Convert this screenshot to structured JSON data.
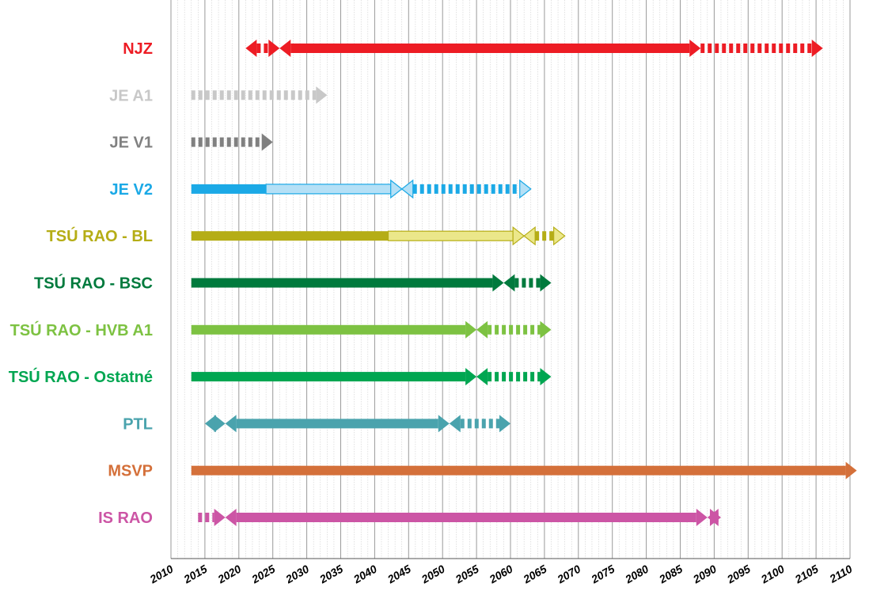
{
  "chart_data": {
    "type": "timeline",
    "x_ticks": [
      2010,
      2015,
      2020,
      2025,
      2030,
      2035,
      2040,
      2045,
      2050,
      2055,
      2060,
      2065,
      2070,
      2075,
      2080,
      2085,
      2090,
      2095,
      2100,
      2105,
      2110
    ],
    "xlim": [
      2010,
      2110
    ],
    "grid": true,
    "minor_grid_step_years": 1,
    "rows": [
      {
        "label": "NJZ",
        "color": "#ed1c24",
        "segments": [
          {
            "style": "dashed",
            "start": 2021,
            "end": 2026,
            "head_start": true,
            "head_end": true
          },
          {
            "style": "solid",
            "start": 2026,
            "end": 2088,
            "head_start": true,
            "head_end": true
          },
          {
            "style": "dashed",
            "start": 2088,
            "end": 2106,
            "head_start": false,
            "head_end": true
          }
        ]
      },
      {
        "label": "JE A1",
        "color": "#c8c8c8",
        "segments": [
          {
            "style": "dashed",
            "start": 2013,
            "end": 2033,
            "head_start": false,
            "head_end": true
          }
        ]
      },
      {
        "label": "JE V1",
        "color": "#808080",
        "segments": [
          {
            "style": "dashed",
            "start": 2013,
            "end": 2025,
            "head_start": false,
            "head_end": true
          }
        ]
      },
      {
        "label": "JE V2",
        "color": "#1ba9e6",
        "light_color": "#b5e0f6",
        "segments": [
          {
            "style": "solid",
            "start": 2013,
            "end": 2024,
            "head_start": false,
            "head_end": false
          },
          {
            "style": "hollow",
            "start": 2024,
            "end": 2044,
            "head_start": false,
            "head_end": true
          },
          {
            "style": "dashed",
            "start": 2044,
            "end": 2063,
            "head_start": true,
            "head_end": true
          }
        ]
      },
      {
        "label": "TSÚ RAO - BL",
        "color": "#b5ad16",
        "light_color": "#ebe78a",
        "segments": [
          {
            "style": "solid",
            "start": 2013,
            "end": 2042,
            "head_start": false,
            "head_end": false
          },
          {
            "style": "hollow",
            "start": 2042,
            "end": 2062,
            "head_start": false,
            "head_end": true
          },
          {
            "style": "dashed",
            "start": 2062,
            "end": 2068,
            "head_start": true,
            "head_end": true
          }
        ]
      },
      {
        "label": "TSÚ RAO - BSC",
        "color": "#007a3d",
        "segments": [
          {
            "style": "solid",
            "start": 2013,
            "end": 2059,
            "head_start": false,
            "head_end": true
          },
          {
            "style": "dashed",
            "start": 2059,
            "end": 2066,
            "head_start": true,
            "head_end": true
          }
        ]
      },
      {
        "label": "TSÚ RAO - HVB A1",
        "color": "#7dc242",
        "segments": [
          {
            "style": "solid",
            "start": 2013,
            "end": 2055,
            "head_start": false,
            "head_end": true
          },
          {
            "style": "dashed",
            "start": 2055,
            "end": 2066,
            "head_start": true,
            "head_end": true
          }
        ]
      },
      {
        "label": "TSÚ RAO - Ostatné",
        "color": "#00a651",
        "segments": [
          {
            "style": "solid",
            "start": 2013,
            "end": 2055,
            "head_start": false,
            "head_end": true
          },
          {
            "style": "dashed",
            "start": 2055,
            "end": 2066,
            "head_start": true,
            "head_end": true
          }
        ]
      },
      {
        "label": "PTL",
        "color": "#4aa3ad",
        "segments": [
          {
            "style": "dashed",
            "start": 2015,
            "end": 2018,
            "head_start": true,
            "head_end": true
          },
          {
            "style": "solid",
            "start": 2018,
            "end": 2051,
            "head_start": true,
            "head_end": true
          },
          {
            "style": "dashed",
            "start": 2051,
            "end": 2060,
            "head_start": true,
            "head_end": true
          }
        ]
      },
      {
        "label": "MSVP",
        "color": "#d4703a",
        "segments": [
          {
            "style": "solid",
            "start": 2013,
            "end": 2111,
            "head_start": false,
            "head_end": true
          }
        ]
      },
      {
        "label": "IS RAO",
        "color": "#cc55a5",
        "segments": [
          {
            "style": "dashed",
            "start": 2014,
            "end": 2018,
            "head_start": false,
            "head_end": true
          },
          {
            "style": "solid",
            "start": 2018,
            "end": 2089,
            "head_start": true,
            "head_end": true
          },
          {
            "style": "dashed",
            "start": 2089,
            "end": 2091,
            "head_start": true,
            "head_end": true
          }
        ]
      }
    ]
  }
}
